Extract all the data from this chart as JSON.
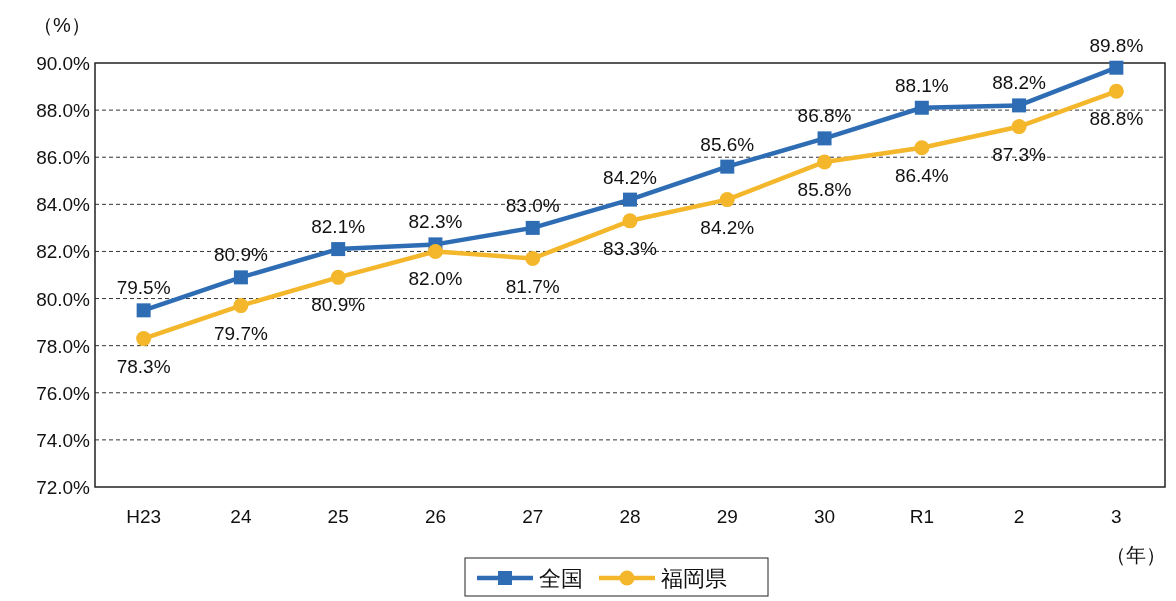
{
  "chart_data": {
    "type": "line",
    "categories": [
      "H23",
      "24",
      "25",
      "26",
      "27",
      "28",
      "29",
      "30",
      "R1",
      "2",
      "3"
    ],
    "series": [
      {
        "name": "全国",
        "color": "#2e6db4",
        "marker": "square",
        "values": [
          79.5,
          80.9,
          82.1,
          82.3,
          83.0,
          84.2,
          85.6,
          86.8,
          88.1,
          88.2,
          89.8
        ],
        "value_labels": [
          "79.5%",
          "80.9%",
          "82.1%",
          "82.3%",
          "83.0%",
          "84.2%",
          "85.6%",
          "86.8%",
          "88.1%",
          "88.2%",
          "89.8%"
        ]
      },
      {
        "name": "福岡県",
        "color": "#f4b72c",
        "marker": "circle",
        "values": [
          78.3,
          79.7,
          80.9,
          82.0,
          81.7,
          83.3,
          84.2,
          85.8,
          86.4,
          87.3,
          88.8
        ],
        "value_labels": [
          "78.3%",
          "79.7%",
          "80.9%",
          "82.0%",
          "81.7%",
          "83.3%",
          "84.2%",
          "85.8%",
          "86.4%",
          "87.3%",
          "88.8%"
        ]
      }
    ],
    "ylim": [
      72,
      90
    ],
    "yticks": [
      {
        "value": 72,
        "label": "72.0%"
      },
      {
        "value": 74,
        "label": "74.0%"
      },
      {
        "value": 76,
        "label": "76.0%"
      },
      {
        "value": 78,
        "label": "78.0%"
      },
      {
        "value": 80,
        "label": "80.0%"
      },
      {
        "value": 82,
        "label": "82.0%"
      },
      {
        "value": 84,
        "label": "84.0%"
      },
      {
        "value": 86,
        "label": "86.0%"
      },
      {
        "value": 88,
        "label": "88.0%"
      },
      {
        "value": 90,
        "label": "90.0%"
      }
    ],
    "ylabel": "（%）",
    "xlabel": "（年）",
    "grid": "y",
    "line_style": "solid",
    "legend": "bottom"
  }
}
